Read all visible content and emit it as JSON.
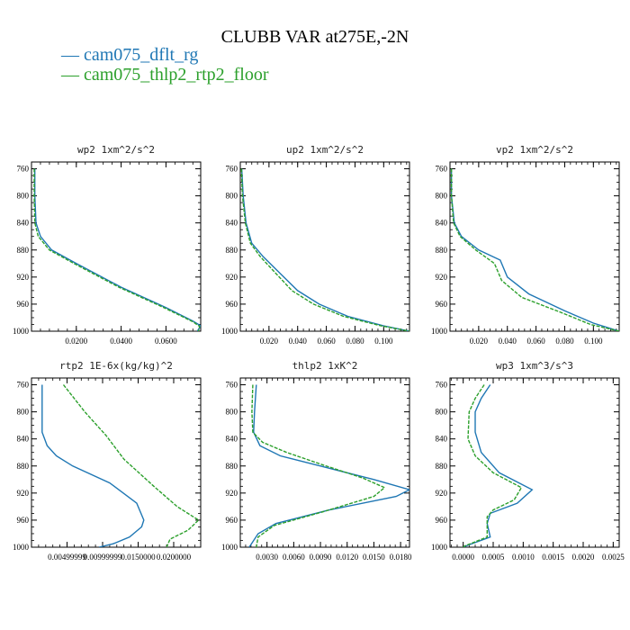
{
  "title": "CLUBB VAR at275E,-2N",
  "legend": [
    {
      "label": "cam075_dflt_rg",
      "color": "#1f77b4"
    },
    {
      "label": "cam075_thlp2_rtp2_floor",
      "color": "#2ca02c"
    }
  ],
  "chart_data": [
    {
      "type": "line",
      "title": "wp2   1xm^2/s^2",
      "xlim": [
        0.0,
        0.0755
      ],
      "xticks": [
        0.02,
        0.04,
        0.06
      ],
      "xtick_labels": [
        "0.0200",
        "0.0400",
        "0.0600"
      ],
      "ylim": [
        1000,
        750
      ],
      "yticks": [
        760,
        800,
        840,
        880,
        920,
        960,
        1000
      ],
      "series": [
        {
          "values": [
            [
              0.0015,
              760
            ],
            [
              0.0015,
              800
            ],
            [
              0.002,
              840
            ],
            [
              0.004,
              860
            ],
            [
              0.009,
              880
            ],
            [
              0.02,
              900
            ],
            [
              0.04,
              935
            ],
            [
              0.06,
              965
            ],
            [
              0.072,
              985
            ],
            [
              0.0755,
              992
            ],
            [
              0.074,
              1000
            ]
          ]
        },
        {
          "values": [
            [
              0.0012,
              760
            ],
            [
              0.0012,
              800
            ],
            [
              0.0015,
              840
            ],
            [
              0.003,
              860
            ],
            [
              0.008,
              880
            ],
            [
              0.019,
              900
            ],
            [
              0.039,
              935
            ],
            [
              0.059,
              965
            ],
            [
              0.072,
              986
            ],
            [
              0.075,
              993
            ],
            [
              0.0745,
              1000
            ]
          ]
        }
      ]
    },
    {
      "type": "line",
      "title": "up2   1xm^2/s^2",
      "xlim": [
        0.0,
        0.118
      ],
      "xticks": [
        0.02,
        0.04,
        0.06,
        0.08,
        0.1
      ],
      "xtick_labels": [
        "0.020",
        "0.040",
        "0.060",
        "0.080",
        "0.100"
      ],
      "ylim": [
        1000,
        750
      ],
      "yticks": [
        760,
        800,
        840,
        880,
        920,
        960,
        1000
      ],
      "series": [
        {
          "values": [
            [
              0.001,
              760
            ],
            [
              0.002,
              800
            ],
            [
              0.004,
              840
            ],
            [
              0.008,
              870
            ],
            [
              0.016,
              890
            ],
            [
              0.028,
              915
            ],
            [
              0.04,
              940
            ],
            [
              0.055,
              960
            ],
            [
              0.075,
              978
            ],
            [
              0.1,
              992
            ],
            [
              0.118,
              1000
            ]
          ]
        },
        {
          "values": [
            [
              0.0008,
              760
            ],
            [
              0.0015,
              800
            ],
            [
              0.0035,
              840
            ],
            [
              0.007,
              870
            ],
            [
              0.014,
              890
            ],
            [
              0.025,
              915
            ],
            [
              0.036,
              940
            ],
            [
              0.051,
              960
            ],
            [
              0.072,
              978
            ],
            [
              0.098,
              992
            ],
            [
              0.118,
              1000
            ]
          ]
        }
      ]
    },
    {
      "type": "line",
      "title": "vp2   1xm^2/s^2",
      "xlim": [
        0.0,
        0.118
      ],
      "xticks": [
        0.02,
        0.04,
        0.06,
        0.08,
        0.1
      ],
      "xtick_labels": [
        "0.020",
        "0.040",
        "0.060",
        "0.080",
        "0.100"
      ],
      "ylim": [
        1000,
        750
      ],
      "yticks": [
        760,
        800,
        840,
        880,
        920,
        960,
        1000
      ],
      "series": [
        {
          "values": [
            [
              0.001,
              760
            ],
            [
              0.001,
              800
            ],
            [
              0.003,
              840
            ],
            [
              0.008,
              860
            ],
            [
              0.02,
              880
            ],
            [
              0.035,
              895
            ],
            [
              0.04,
              920
            ],
            [
              0.055,
              945
            ],
            [
              0.08,
              970
            ],
            [
              0.1,
              988
            ],
            [
              0.118,
              1000
            ]
          ]
        },
        {
          "values": [
            [
              0.001,
              760
            ],
            [
              0.001,
              800
            ],
            [
              0.0025,
              840
            ],
            [
              0.007,
              860
            ],
            [
              0.018,
              880
            ],
            [
              0.031,
              900
            ],
            [
              0.036,
              925
            ],
            [
              0.05,
              950
            ],
            [
              0.077,
              972
            ],
            [
              0.098,
              990
            ],
            [
              0.118,
              1000
            ]
          ]
        }
      ]
    },
    {
      "type": "line",
      "title": "rtp2   1E-6x(kg/kg)^2",
      "xlim": [
        0.0,
        2.38e-05
      ],
      "xticks": [
        5e-06,
        1e-05,
        1.5e-05,
        2e-05
      ],
      "xtick_labels": [
        "0.00499999",
        "0.00999999",
        "0.0150000",
        "0.0200000"
      ],
      "ylim": [
        1000,
        750
      ],
      "yticks": [
        760,
        800,
        840,
        880,
        920,
        960,
        1000
      ],
      "series": [
        {
          "values": [
            [
              1.5e-06,
              760
            ],
            [
              1.5e-06,
              800
            ],
            [
              1.5e-06,
              830
            ],
            [
              2.2e-06,
              850
            ],
            [
              3.5e-06,
              865
            ],
            [
              5.8e-06,
              880
            ],
            [
              1.1e-05,
              905
            ],
            [
              1.48e-05,
              935
            ],
            [
              1.58e-05,
              960
            ],
            [
              1.55e-05,
              970
            ],
            [
              1.38e-05,
              985
            ],
            [
              1.15e-05,
              995
            ],
            [
              9.5e-06,
              1000
            ]
          ]
        },
        {
          "values": [
            [
              4.5e-06,
              760
            ],
            [
              7.5e-06,
              800
            ],
            [
              1.05e-05,
              835
            ],
            [
              1.3e-05,
              870
            ],
            [
              1.72e-05,
              910
            ],
            [
              2.05e-05,
              940
            ],
            [
              2.35e-05,
              960
            ],
            [
              2.2e-05,
              975
            ],
            [
              1.95e-05,
              988
            ],
            [
              1.9e-05,
              1000
            ]
          ]
        }
      ]
    },
    {
      "type": "line",
      "title": "thlp2   1xK^2",
      "xlim": [
        0.0,
        0.019
      ],
      "xticks": [
        0.003,
        0.006,
        0.009,
        0.012,
        0.015,
        0.018
      ],
      "xtick_labels": [
        "0.0030",
        "0.0060",
        "0.0090",
        "0.0120",
        "0.0150",
        "0.0180"
      ],
      "ylim": [
        1000,
        750
      ],
      "yticks": [
        760,
        800,
        840,
        880,
        920,
        960,
        1000
      ],
      "series": [
        {
          "values": [
            [
              0.0018,
              760
            ],
            [
              0.0016,
              800
            ],
            [
              0.0015,
              830
            ],
            [
              0.0022,
              850
            ],
            [
              0.0045,
              865
            ],
            [
              0.009,
              880
            ],
            [
              0.015,
              900
            ],
            [
              0.019,
              915
            ],
            [
              0.0175,
              925
            ],
            [
              0.01,
              945
            ],
            [
              0.004,
              965
            ],
            [
              0.002,
              980
            ],
            [
              0.001,
              1000
            ]
          ]
        },
        {
          "values": [
            [
              0.0014,
              760
            ],
            [
              0.0013,
              800
            ],
            [
              0.0014,
              830
            ],
            [
              0.0025,
              845
            ],
            [
              0.0052,
              860
            ],
            [
              0.0092,
              878
            ],
            [
              0.0138,
              898
            ],
            [
              0.0162,
              912
            ],
            [
              0.015,
              925
            ],
            [
              0.0092,
              948
            ],
            [
              0.0038,
              968
            ],
            [
              0.002,
              985
            ],
            [
              0.0018,
              1000
            ]
          ]
        }
      ]
    },
    {
      "type": "line",
      "title": "wp3   1xm^3/s^3",
      "xlim": [
        -0.00022,
        0.0026
      ],
      "xticks": [
        0.0,
        0.0005,
        0.001,
        0.0015,
        0.002,
        0.0025
      ],
      "xtick_labels": [
        "0.0000",
        "0.0005",
        "0.0010",
        "0.0015",
        "0.0020",
        "0.0025"
      ],
      "ylim": [
        1000,
        750
      ],
      "yticks": [
        760,
        800,
        840,
        880,
        920,
        960,
        1000
      ],
      "series": [
        {
          "values": [
            [
              0.00045,
              760
            ],
            [
              0.0003,
              780
            ],
            [
              0.0002,
              800
            ],
            [
              0.0002,
              830
            ],
            [
              0.0003,
              860
            ],
            [
              0.0006,
              890
            ],
            [
              0.00115,
              915
            ],
            [
              0.0009,
              935
            ],
            [
              0.0006,
              945
            ],
            [
              0.00045,
              950
            ],
            [
              0.0004,
              965
            ],
            [
              0.00045,
              985
            ],
            [
              5e-05,
              998
            ],
            [
              0.0,
              1000
            ]
          ]
        },
        {
          "values": [
            [
              0.00035,
              760
            ],
            [
              0.0002,
              780
            ],
            [
              0.0001,
              800
            ],
            [
              8e-05,
              840
            ],
            [
              0.0002,
              865
            ],
            [
              0.0005,
              890
            ],
            [
              0.00097,
              912
            ],
            [
              0.00085,
              930
            ],
            [
              0.0005,
              945
            ],
            [
              0.0004,
              955
            ],
            [
              0.0004,
              970
            ],
            [
              0.0004,
              985
            ],
            [
              3e-05,
              998
            ],
            [
              0.0,
              1000
            ]
          ]
        }
      ]
    }
  ]
}
